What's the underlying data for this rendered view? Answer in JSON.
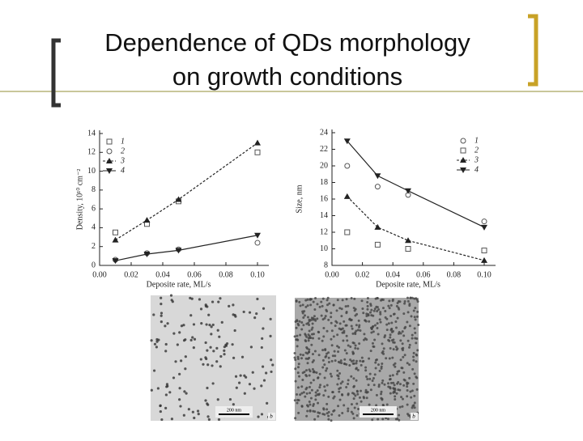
{
  "title": [
    "Dependence of QDs morphology",
    "on growth conditions"
  ],
  "chart_data": [
    {
      "type": "line",
      "xlabel": "Deposite rate, ML/s",
      "ylabel": "Density, 10¹⁰ cm⁻²",
      "xlim": [
        0,
        0.1
      ],
      "xticks": [
        {
          "value": 0,
          "label": "0.00"
        },
        {
          "value": 0.02,
          "label": "0.02"
        },
        {
          "value": 0.04,
          "label": "0.04"
        },
        {
          "value": 0.06,
          "label": "0.06"
        },
        {
          "value": 0.08,
          "label": "0.08"
        },
        {
          "value": 0.1,
          "label": "0.10"
        }
      ],
      "ylim": [
        0,
        14
      ],
      "yticks": [
        0,
        2,
        4,
        6,
        8,
        10,
        12,
        14
      ],
      "legend": "upper left",
      "x": [
        0.01,
        0.03,
        0.05,
        0.1
      ],
      "series": [
        {
          "name": "1",
          "marker": "square",
          "line": "none",
          "color": "#555555",
          "values": [
            3.5,
            4.4,
            6.8,
            12
          ]
        },
        {
          "name": "2",
          "marker": "circle",
          "line": "none",
          "color": "#555555",
          "values": [
            0.6,
            1.3,
            1.7,
            2.4
          ]
        },
        {
          "name": "3",
          "marker": "triangle-up",
          "line": "dashed",
          "color": "#222222",
          "values": [
            2.7,
            4.8,
            7.0,
            13
          ]
        },
        {
          "name": "4",
          "marker": "triangle-down",
          "line": "solid",
          "color": "#222222",
          "values": [
            0.5,
            1.2,
            1.6,
            3.2
          ]
        }
      ]
    },
    {
      "type": "line",
      "xlabel": "Deposite rate, ML/s",
      "ylabel": "Size, nm",
      "xlim": [
        0,
        0.1
      ],
      "xticks": [
        {
          "value": 0,
          "label": "0.00"
        },
        {
          "value": 0.02,
          "label": "0.02"
        },
        {
          "value": 0.04,
          "label": "0.04"
        },
        {
          "value": 0.06,
          "label": "0.06"
        },
        {
          "value": 0.08,
          "label": "0.08"
        },
        {
          "value": 0.1,
          "label": "0.10"
        }
      ],
      "ylim": [
        8,
        24
      ],
      "yticks": [
        8,
        10,
        12,
        14,
        16,
        18,
        20,
        22,
        24
      ],
      "legend": "upper right",
      "x": [
        0.01,
        0.03,
        0.05,
        0.1
      ],
      "series": [
        {
          "name": "1",
          "marker": "circle",
          "line": "none",
          "color": "#555555",
          "values": [
            20,
            17.5,
            16.5,
            13.3
          ]
        },
        {
          "name": "2",
          "marker": "square",
          "line": "none",
          "color": "#555555",
          "values": [
            12,
            10.5,
            10,
            9.8
          ]
        },
        {
          "name": "3",
          "marker": "triangle-up",
          "line": "dashed",
          "color": "#222222",
          "values": [
            16.3,
            12.6,
            11,
            8.6
          ]
        },
        {
          "name": "4",
          "marker": "triangle-down",
          "line": "solid",
          "color": "#222222",
          "values": [
            23,
            18.8,
            17,
            12.6
          ]
        }
      ]
    }
  ],
  "images": [
    {
      "scale": "200 nm",
      "panel": "b"
    },
    {
      "scale": "200 nm",
      "panel": "b"
    }
  ]
}
